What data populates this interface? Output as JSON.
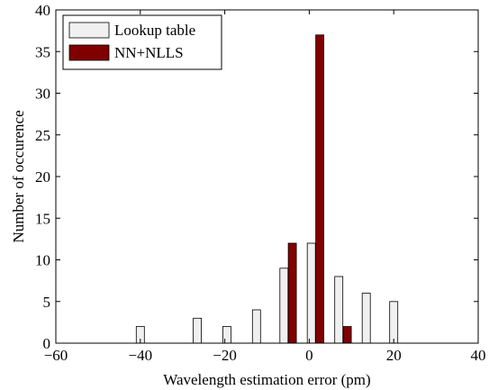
{
  "chart_data": {
    "type": "bar",
    "title": "",
    "xlabel": "Wavelength estimation error (pm)",
    "ylabel": "Number of occurence",
    "xlim": [
      -60,
      40
    ],
    "ylim": [
      0,
      40
    ],
    "xticks": [
      -60,
      -40,
      -20,
      0,
      20,
      40
    ],
    "yticks": [
      0,
      5,
      10,
      15,
      20,
      25,
      30,
      35,
      40
    ],
    "xtick_labels": [
      "−60",
      "−40",
      "−20",
      "0",
      "20",
      "40"
    ],
    "ytick_labels": [
      "0",
      "5",
      "10",
      "15",
      "20",
      "25",
      "30",
      "35",
      "40"
    ],
    "grid": false,
    "legend_position": "top-left",
    "series": [
      {
        "name": "Lookup table",
        "color": "#f0f0f0",
        "x": [
          -40,
          -26.5,
          -19.5,
          -12.5,
          -6,
          0.5,
          7,
          13.5,
          20
        ],
        "values": [
          2,
          3,
          2,
          4,
          9,
          12,
          8,
          6,
          5
        ]
      },
      {
        "name": "NN+NLLS",
        "color": "#800000",
        "x": [
          -4,
          2.5,
          9
        ],
        "values": [
          12,
          37,
          2
        ]
      }
    ]
  }
}
